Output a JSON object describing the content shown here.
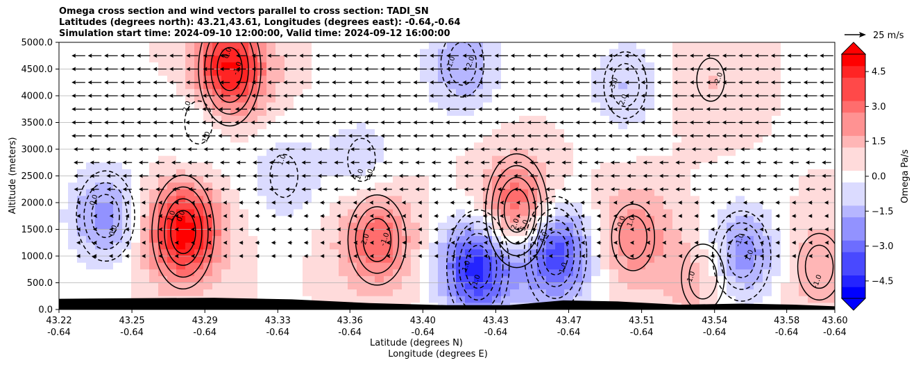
{
  "chart_data": {
    "type": "heatmap",
    "title_lines": [
      "Omega cross section and wind vectors parallel to cross section: TADI_SN",
      "Latitudes (degrees north): 43.21,43.61, Longitudes (degrees east): -0.64,-0.64",
      "Simulation start time: 2024-09-10 12:00:00, Valid time: 2024-09-12 16:00:00"
    ],
    "ylabel": "Altitude (meters)",
    "xlabel_lines": [
      "Latitude (degrees N)",
      "Longitude (degrees E)"
    ],
    "ylim": [
      0,
      5000
    ],
    "y_ticks": [
      "0.0",
      "500.0",
      "1000.0",
      "1500.0",
      "2000.0",
      "2500.0",
      "3000.0",
      "3500.0",
      "4000.0",
      "4500.0",
      "5000.0"
    ],
    "x_ticks": [
      {
        "lat": "43.22",
        "lon": "-0.64"
      },
      {
        "lat": "43.25",
        "lon": "-0.64"
      },
      {
        "lat": "43.29",
        "lon": "-0.64"
      },
      {
        "lat": "43.33",
        "lon": "-0.64"
      },
      {
        "lat": "43.36",
        "lon": "-0.64"
      },
      {
        "lat": "43.40",
        "lon": "-0.64"
      },
      {
        "lat": "43.43",
        "lon": "-0.64"
      },
      {
        "lat": "43.47",
        "lon": "-0.64"
      },
      {
        "lat": "43.51",
        "lon": "-0.64"
      },
      {
        "lat": "43.54",
        "lon": "-0.64"
      },
      {
        "lat": "43.58",
        "lon": "-0.64"
      },
      {
        "lat": "43.60",
        "lon": "-0.64"
      }
    ],
    "grid": "horizontal",
    "colorbar": {
      "label": "Omega Pa/s",
      "range": [
        -5.25,
        5.25
      ],
      "ticks": [
        "4.5",
        "3.0",
        "1.5",
        "0.0",
        "−1.5",
        "−3.0",
        "−4.5"
      ],
      "colormap": "bwr",
      "extend": "both"
    },
    "quiver_key": {
      "label": "25 m/s"
    },
    "omega_centers": [
      {
        "lat_frac": 0.06,
        "alt": 1750,
        "value": -2.5
      },
      {
        "lat_frac": 0.16,
        "alt": 1450,
        "value": 5.0
      },
      {
        "lat_frac": 0.22,
        "alt": 4500,
        "value": 4.8
      },
      {
        "lat_frac": 0.41,
        "alt": 1300,
        "value": 3.0
      },
      {
        "lat_frac": 0.54,
        "alt": 800,
        "value": -5.0
      },
      {
        "lat_frac": 0.59,
        "alt": 1850,
        "value": 3.5
      },
      {
        "lat_frac": 0.64,
        "alt": 1050,
        "value": -4.5
      },
      {
        "lat_frac": 0.74,
        "alt": 1350,
        "value": 2.2
      },
      {
        "lat_frac": 0.88,
        "alt": 1000,
        "value": -3.0
      },
      {
        "lat_frac": 0.52,
        "alt": 4600,
        "value": -2.2
      },
      {
        "lat_frac": 0.73,
        "alt": 4200,
        "value": -1.5
      },
      {
        "lat_frac": 0.39,
        "alt": 2800,
        "value": -1.2
      },
      {
        "lat_frac": 0.18,
        "alt": 3500,
        "value": -1.2
      },
      {
        "lat_frac": 0.29,
        "alt": 2500,
        "value": -1.3
      },
      {
        "lat_frac": 0.84,
        "alt": 4300,
        "value": 0.8
      },
      {
        "lat_frac": 0.83,
        "alt": 600,
        "value": 1.5
      },
      {
        "lat_frac": 0.98,
        "alt": 800,
        "value": 1.5
      }
    ],
    "contour_labels": [
      "0.0",
      "0.0",
      "-1.0",
      "2.0",
      "-1.0",
      "5.0",
      "4.0",
      "1.0",
      "1.0",
      "-1.0",
      "2.0",
      "3.0",
      "2.0",
      "1.0",
      "-2.0",
      "1.0",
      "-1.0",
      "0.0",
      "1.0",
      "0.0",
      "-1.0",
      "1.0",
      "-2.0",
      "1.0",
      "0.0",
      "-1.0",
      "-2.0",
      "-3.0",
      "1.0",
      "1.0"
    ]
  }
}
